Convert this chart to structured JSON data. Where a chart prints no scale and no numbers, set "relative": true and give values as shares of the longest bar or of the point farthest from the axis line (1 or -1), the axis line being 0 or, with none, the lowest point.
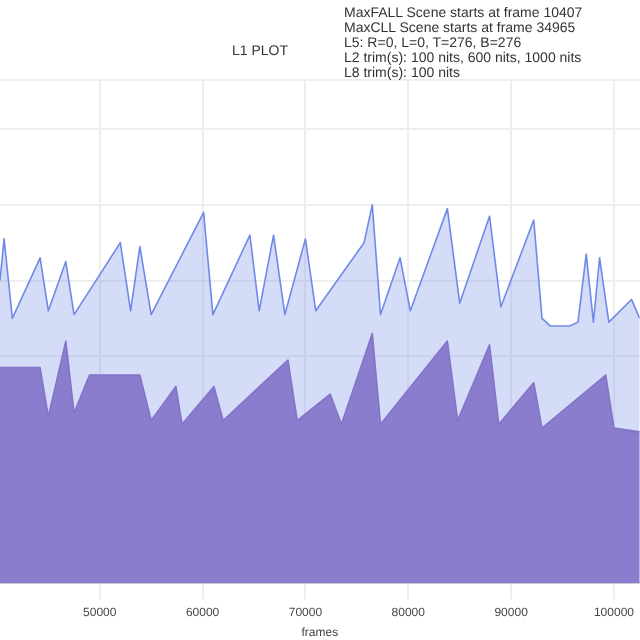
{
  "chart_data": {
    "type": "area",
    "title": "L1 PLOT",
    "xlabel": "frames",
    "relative": true,
    "grid": true,
    "legend": false,
    "marker": "none",
    "annotations": [
      "MaxFALL Scene starts at frame 10407",
      "MaxCLL Scene starts at frame 34965",
      "L5: R=0, L=0, T=276, B=276",
      "L2 trim(s): 100 nits, 600 nits, 1000 nits",
      "L8 trim(s): 100 nits"
    ],
    "xlim": [
      40300,
      102500
    ],
    "xticks": [
      50000,
      60000,
      70000,
      80000,
      90000,
      100000
    ],
    "series": [
      {
        "color": "#6f8ae6",
        "x": [
          40300,
          40700,
          41500,
          44200,
          45000,
          46700,
          47500,
          52000,
          53000,
          53900,
          55000,
          60100,
          61000,
          64600,
          65500,
          66900,
          68000,
          70000,
          71000,
          75700,
          76500,
          77300,
          79200,
          80200,
          83800,
          85000,
          87900,
          89000,
          92200,
          93000,
          93800,
          95700,
          96500,
          97300,
          98000,
          98600,
          99500,
          101700,
          102500
        ],
        "values": [
          0.8,
          0.91,
          0.7,
          0.86,
          0.72,
          0.85,
          0.71,
          0.9,
          0.72,
          0.89,
          0.71,
          0.98,
          0.71,
          0.92,
          0.72,
          0.92,
          0.71,
          0.91,
          0.72,
          0.9,
          1.0,
          0.71,
          0.86,
          0.72,
          0.99,
          0.74,
          0.97,
          0.73,
          0.96,
          0.7,
          0.68,
          0.68,
          0.69,
          0.87,
          0.69,
          0.86,
          0.69,
          0.75,
          0.7
        ]
      },
      {
        "color": "#8c6bbe",
        "x": [
          40300,
          44200,
          45000,
          46700,
          47500,
          49000,
          52000,
          53900,
          55000,
          57400,
          58000,
          61100,
          62000,
          68300,
          69200,
          72400,
          73500,
          76500,
          77300,
          83800,
          84800,
          87900,
          88800,
          92200,
          93000,
          99200,
          100000,
          102500
        ],
        "values": [
          0.57,
          0.57,
          0.44,
          0.64,
          0.45,
          0.55,
          0.55,
          0.55,
          0.43,
          0.52,
          0.42,
          0.52,
          0.43,
          0.59,
          0.43,
          0.5,
          0.42,
          0.66,
          0.42,
          0.64,
          0.43,
          0.63,
          0.42,
          0.53,
          0.41,
          0.55,
          0.41,
          0.4
        ]
      }
    ]
  }
}
